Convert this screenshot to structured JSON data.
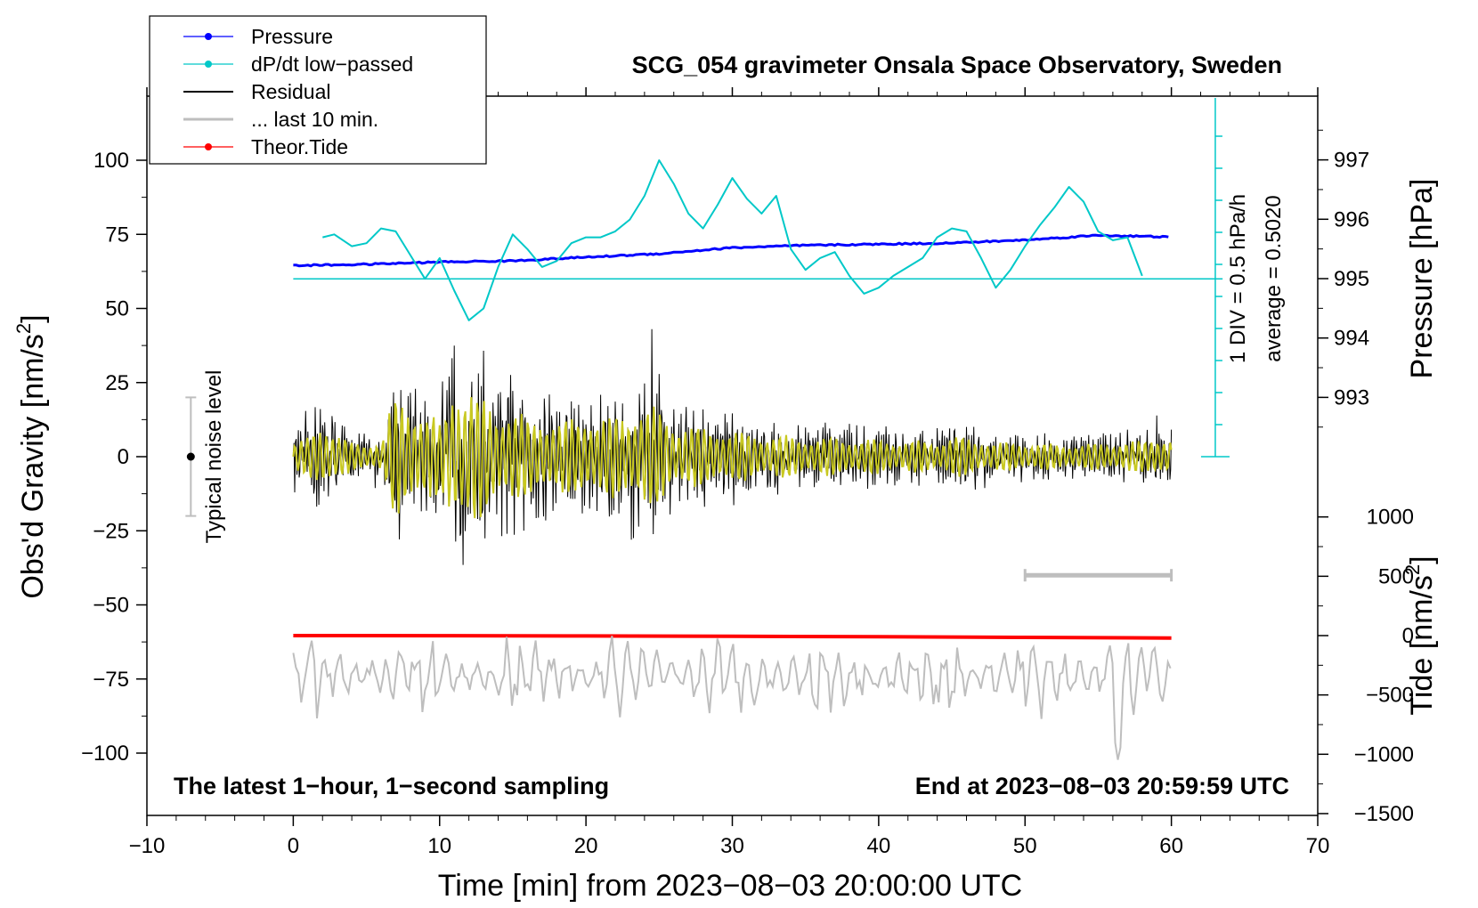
{
  "chart_data": {
    "type": "line",
    "title": "SCG_054 gravimeter Onsala Space Observatory, Sweden",
    "xlabel": "Time [min] from 2023−08−03 20:00:00 UTC",
    "ylabel": "Obs'd Gravity [nm/s",
    "ylabel_sup": "2",
    "ylabel_end": "]",
    "y2_label_pressure": "Pressure [hPa]",
    "y2_label_tide": "Tide [nm/s",
    "y2_label_tide_sup": "2",
    "y2_label_tide_end": "]",
    "xlim": [
      -10,
      70
    ],
    "ylim": [
      -120,
      120
    ],
    "x_ticks": [
      "−10",
      "0",
      "10",
      "20",
      "30",
      "40",
      "50",
      "60",
      "70"
    ],
    "x_tick_values": [
      -10,
      0,
      10,
      20,
      30,
      40,
      50,
      60,
      70
    ],
    "y_ticks": [
      "100",
      "75",
      "50",
      "25",
      "0",
      "−25",
      "−50",
      "−75",
      "−100"
    ],
    "y_tick_values": [
      100,
      75,
      50,
      25,
      0,
      -25,
      -50,
      -75,
      -100
    ],
    "pressure_ticks": [
      "997",
      "996",
      "995",
      "994",
      "993"
    ],
    "pressure_tick_values": [
      997,
      996,
      995,
      994,
      993
    ],
    "tide_ticks": [
      "1000",
      "500",
      "0",
      "−500",
      "−1000",
      "−1500"
    ],
    "tide_tick_values": [
      1000,
      500,
      0,
      -500,
      -1000,
      -1500
    ],
    "legend": [
      {
        "label": "Pressure",
        "color": "#0000ff",
        "marker": true
      },
      {
        "label": "dP/dt low−passed",
        "color": "#00c8c8",
        "marker": true
      },
      {
        "label": "Residual",
        "color": "#000000",
        "marker": false
      },
      {
        "label": "... last 10 min.",
        "color": "#bebebe",
        "marker": false
      },
      {
        "label": "Theor.Tide",
        "color": "#ff0000",
        "marker": true
      }
    ],
    "annotations": {
      "noise_label": "Typical noise level",
      "div_label": "1 DIV = 0.5 hPa/h",
      "avg_label": "average = 0.5020",
      "bottom_left": "The latest 1−hour, 1−second sampling",
      "bottom_right": "End at 2023−08−03 20:59:59 UTC"
    },
    "series": [
      {
        "name": "Pressure",
        "unit": "hPa",
        "color": "#0000ff",
        "x": [
          0,
          5,
          10,
          15,
          20,
          25,
          30,
          35,
          40,
          45,
          50,
          55,
          60
        ],
        "y": [
          995.22,
          995.24,
          995.28,
          995.3,
          995.36,
          995.42,
          995.52,
          995.56,
          995.58,
          995.6,
          995.65,
          995.73,
          995.7
        ]
      },
      {
        "name": "dP/dt low−passed",
        "unit": "nm/s2-plot",
        "color": "#00c8c8",
        "x": [
          2,
          2.8,
          4,
          5,
          6,
          7,
          8,
          9,
          10,
          11,
          12,
          13,
          14,
          15,
          16,
          17,
          18,
          19,
          20,
          21,
          22,
          23,
          24,
          25,
          26,
          27,
          28,
          29,
          30,
          31,
          32,
          33,
          34,
          35,
          36,
          37,
          38,
          39,
          40,
          41,
          42,
          43,
          44,
          45,
          46,
          47,
          48,
          49,
          50,
          51,
          52,
          53,
          54,
          55,
          56,
          57,
          58
        ],
        "y": [
          74,
          75,
          71,
          72,
          77,
          76,
          68,
          60,
          67,
          56,
          46,
          50,
          64,
          75,
          70,
          64,
          66,
          72,
          74,
          74,
          76,
          80,
          88,
          100,
          92,
          82,
          77,
          85,
          94,
          87,
          82,
          88,
          70,
          63,
          67,
          69,
          61,
          55,
          57,
          61,
          64,
          67,
          74,
          77,
          76,
          67,
          57,
          63,
          71,
          78,
          84,
          91,
          86,
          76,
          73,
          74,
          61
        ]
      },
      {
        "name": "Residual",
        "unit": "nm/s2",
        "color": "#000000",
        "envelope": true
      },
      {
        "name": "Theor.Tide",
        "unit": "nm/s2",
        "color": "#ff0000",
        "x": [
          0,
          10,
          20,
          30,
          40,
          50,
          60
        ],
        "y": [
          0,
          -1,
          -3,
          -6,
          -10,
          -15,
          -20
        ]
      }
    ]
  }
}
